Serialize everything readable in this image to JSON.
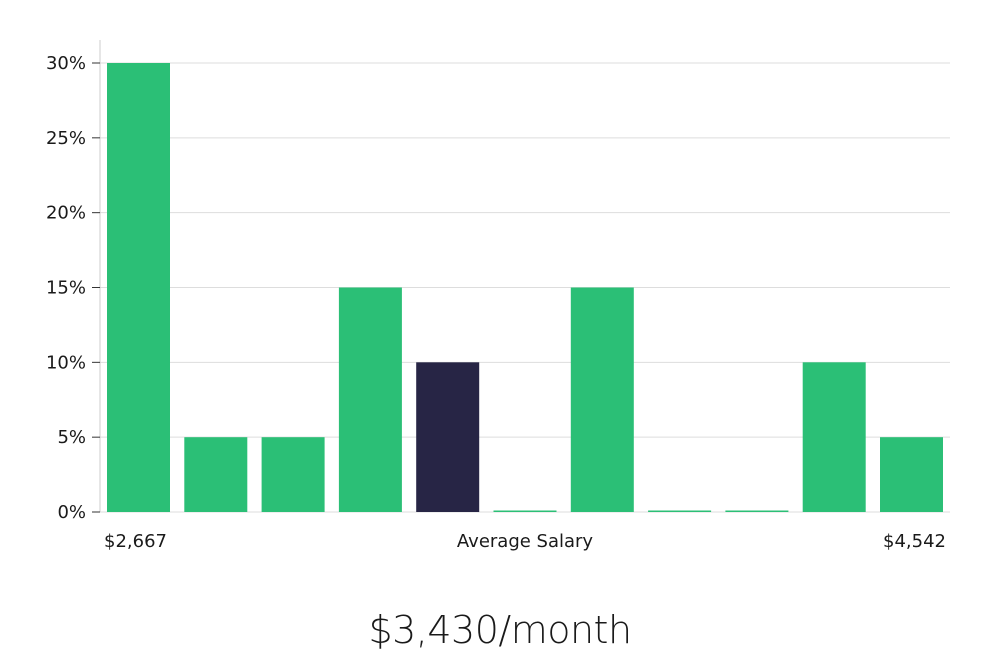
{
  "chart_data": {
    "type": "bar",
    "values": [
      30,
      5,
      5,
      15,
      10,
      0,
      15,
      0,
      0,
      10,
      5
    ],
    "highlight_index": 4,
    "ylim": [
      0,
      30
    ],
    "yticks": [
      "0%",
      "5%",
      "10%",
      "15%",
      "20%",
      "25%",
      "30%"
    ],
    "xlabel_left": "$2,667",
    "xlabel_center": "Average Salary",
    "xlabel_right": "$4,542",
    "grid": true,
    "colors": {
      "bar": "#2bbf76",
      "highlight": "#272545",
      "grid": "#dddddd",
      "axis": "#cccccc"
    }
  },
  "footer": {
    "salary": "$3,430/month"
  }
}
